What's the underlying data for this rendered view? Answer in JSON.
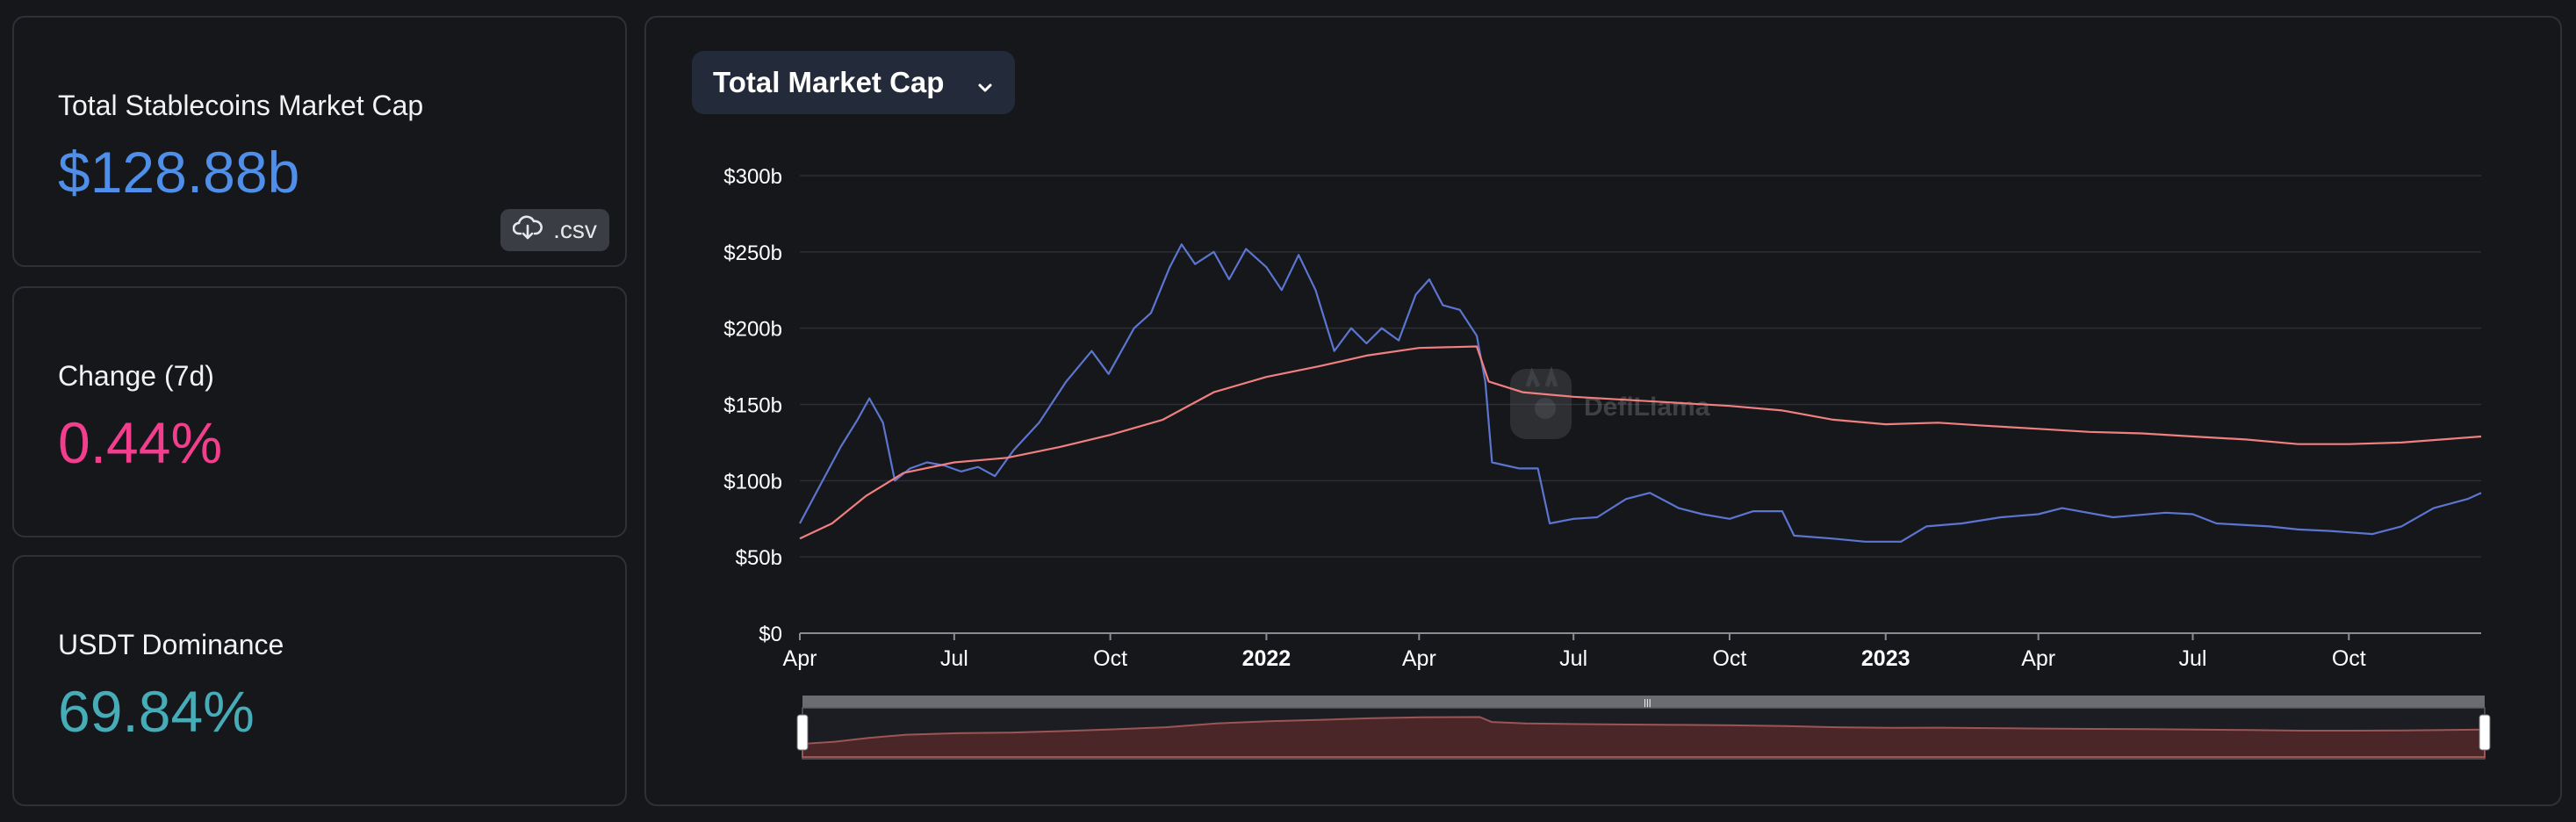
{
  "stats": [
    {
      "label": "Total Stablecoins Market Cap",
      "value": "$128.88b",
      "color": "#4f8fea"
    },
    {
      "label": "Change (7d)",
      "value": "0.44%",
      "color": "#f23e8c"
    },
    {
      "label": "USDT Dominance",
      "value": "69.84%",
      "color": "#46acb7"
    }
  ],
  "csv_button": {
    "label": ".csv",
    "icon": "cloud-download-icon"
  },
  "dropdown": {
    "label": "Total Market Cap",
    "icon": "chevron-down-icon"
  },
  "watermark": {
    "label": "DefiLlama",
    "icon": "llama-logo-icon"
  },
  "chart_data": {
    "type": "line",
    "title": "",
    "xlabel": "",
    "ylabel": "",
    "ylim": [
      0,
      300
    ],
    "yunit": "b",
    "grid": true,
    "y_ticks": [
      "$0",
      "$50b",
      "$100b",
      "$150b",
      "$200b",
      "$250b",
      "$300b"
    ],
    "x_ticks": [
      {
        "label": "Apr",
        "date": "2021-04-01",
        "bold": false
      },
      {
        "label": "Jul",
        "date": "2021-07-01",
        "bold": false
      },
      {
        "label": "Oct",
        "date": "2021-10-01",
        "bold": false
      },
      {
        "label": "2022",
        "date": "2022-01-01",
        "bold": true
      },
      {
        "label": "Apr",
        "date": "2022-04-01",
        "bold": false
      },
      {
        "label": "Jul",
        "date": "2022-07-01",
        "bold": false
      },
      {
        "label": "Oct",
        "date": "2022-10-01",
        "bold": false
      },
      {
        "label": "2023",
        "date": "2023-01-01",
        "bold": true
      },
      {
        "label": "Apr",
        "date": "2023-04-01",
        "bold": false
      },
      {
        "label": "Jul",
        "date": "2023-07-01",
        "bold": false
      },
      {
        "label": "Oct",
        "date": "2023-10-01",
        "bold": false
      }
    ],
    "xlim": [
      "2021-04-01",
      "2023-12-18"
    ],
    "series": [
      {
        "color": "#5b75d0",
        "points": [
          [
            "2021-04-01",
            72
          ],
          [
            "2021-04-12",
            95
          ],
          [
            "2021-04-25",
            122
          ],
          [
            "2021-05-05",
            140
          ],
          [
            "2021-05-12",
            154
          ],
          [
            "2021-05-20",
            138
          ],
          [
            "2021-05-27",
            100
          ],
          [
            "2021-06-05",
            108
          ],
          [
            "2021-06-15",
            112
          ],
          [
            "2021-06-25",
            110
          ],
          [
            "2021-07-05",
            106
          ],
          [
            "2021-07-15",
            109
          ],
          [
            "2021-07-25",
            103
          ],
          [
            "2021-08-05",
            120
          ],
          [
            "2021-08-20",
            138
          ],
          [
            "2021-09-05",
            165
          ],
          [
            "2021-09-20",
            185
          ],
          [
            "2021-09-30",
            170
          ],
          [
            "2021-10-15",
            200
          ],
          [
            "2021-10-25",
            210
          ],
          [
            "2021-11-05",
            240
          ],
          [
            "2021-11-12",
            255
          ],
          [
            "2021-11-20",
            242
          ],
          [
            "2021-12-01",
            250
          ],
          [
            "2021-12-10",
            232
          ],
          [
            "2021-12-20",
            252
          ],
          [
            "2022-01-01",
            240
          ],
          [
            "2022-01-10",
            225
          ],
          [
            "2022-01-20",
            248
          ],
          [
            "2022-01-30",
            225
          ],
          [
            "2022-02-10",
            185
          ],
          [
            "2022-02-20",
            200
          ],
          [
            "2022-03-01",
            190
          ],
          [
            "2022-03-10",
            200
          ],
          [
            "2022-03-20",
            192
          ],
          [
            "2022-03-30",
            222
          ],
          [
            "2022-04-07",
            232
          ],
          [
            "2022-04-15",
            215
          ],
          [
            "2022-04-25",
            212
          ],
          [
            "2022-05-05",
            195
          ],
          [
            "2022-05-10",
            165
          ],
          [
            "2022-05-14",
            112
          ],
          [
            "2022-05-30",
            108
          ],
          [
            "2022-06-10",
            108
          ],
          [
            "2022-06-17",
            72
          ],
          [
            "2022-07-01",
            75
          ],
          [
            "2022-07-15",
            76
          ],
          [
            "2022-08-01",
            88
          ],
          [
            "2022-08-15",
            92
          ],
          [
            "2022-09-01",
            82
          ],
          [
            "2022-09-15",
            78
          ],
          [
            "2022-10-01",
            75
          ],
          [
            "2022-10-15",
            80
          ],
          [
            "2022-11-01",
            80
          ],
          [
            "2022-11-08",
            64
          ],
          [
            "2022-12-01",
            62
          ],
          [
            "2022-12-20",
            60
          ],
          [
            "2023-01-10",
            60
          ],
          [
            "2023-01-25",
            70
          ],
          [
            "2023-02-15",
            72
          ],
          [
            "2023-03-10",
            76
          ],
          [
            "2023-04-01",
            78
          ],
          [
            "2023-04-15",
            82
          ],
          [
            "2023-05-15",
            76
          ],
          [
            "2023-06-15",
            79
          ],
          [
            "2023-07-01",
            78
          ],
          [
            "2023-07-15",
            72
          ],
          [
            "2023-08-15",
            70
          ],
          [
            "2023-09-01",
            68
          ],
          [
            "2023-09-20",
            67
          ],
          [
            "2023-10-15",
            65
          ],
          [
            "2023-11-01",
            70
          ],
          [
            "2023-11-20",
            82
          ],
          [
            "2023-12-10",
            88
          ],
          [
            "2023-12-18",
            92
          ]
        ]
      },
      {
        "color": "#f08080",
        "points": [
          [
            "2021-04-01",
            62
          ],
          [
            "2021-04-20",
            72
          ],
          [
            "2021-05-10",
            90
          ],
          [
            "2021-06-01",
            105
          ],
          [
            "2021-07-01",
            112
          ],
          [
            "2021-08-01",
            115
          ],
          [
            "2021-09-01",
            122
          ],
          [
            "2021-10-01",
            130
          ],
          [
            "2021-11-01",
            140
          ],
          [
            "2021-12-01",
            158
          ],
          [
            "2022-01-01",
            168
          ],
          [
            "2022-02-01",
            175
          ],
          [
            "2022-03-01",
            182
          ],
          [
            "2022-04-01",
            187
          ],
          [
            "2022-05-05",
            188
          ],
          [
            "2022-05-12",
            165
          ],
          [
            "2022-06-01",
            158
          ],
          [
            "2022-07-01",
            155
          ],
          [
            "2022-08-01",
            153
          ],
          [
            "2022-09-01",
            151
          ],
          [
            "2022-10-01",
            149
          ],
          [
            "2022-11-01",
            146
          ],
          [
            "2022-12-01",
            140
          ],
          [
            "2023-01-01",
            137
          ],
          [
            "2023-02-01",
            138
          ],
          [
            "2023-03-01",
            136
          ],
          [
            "2023-04-01",
            134
          ],
          [
            "2023-05-01",
            132
          ],
          [
            "2023-06-01",
            131
          ],
          [
            "2023-07-01",
            129
          ],
          [
            "2023-08-01",
            127
          ],
          [
            "2023-09-01",
            124
          ],
          [
            "2023-10-01",
            124
          ],
          [
            "2023-11-01",
            125
          ],
          [
            "2023-12-18",
            129
          ]
        ]
      }
    ]
  }
}
